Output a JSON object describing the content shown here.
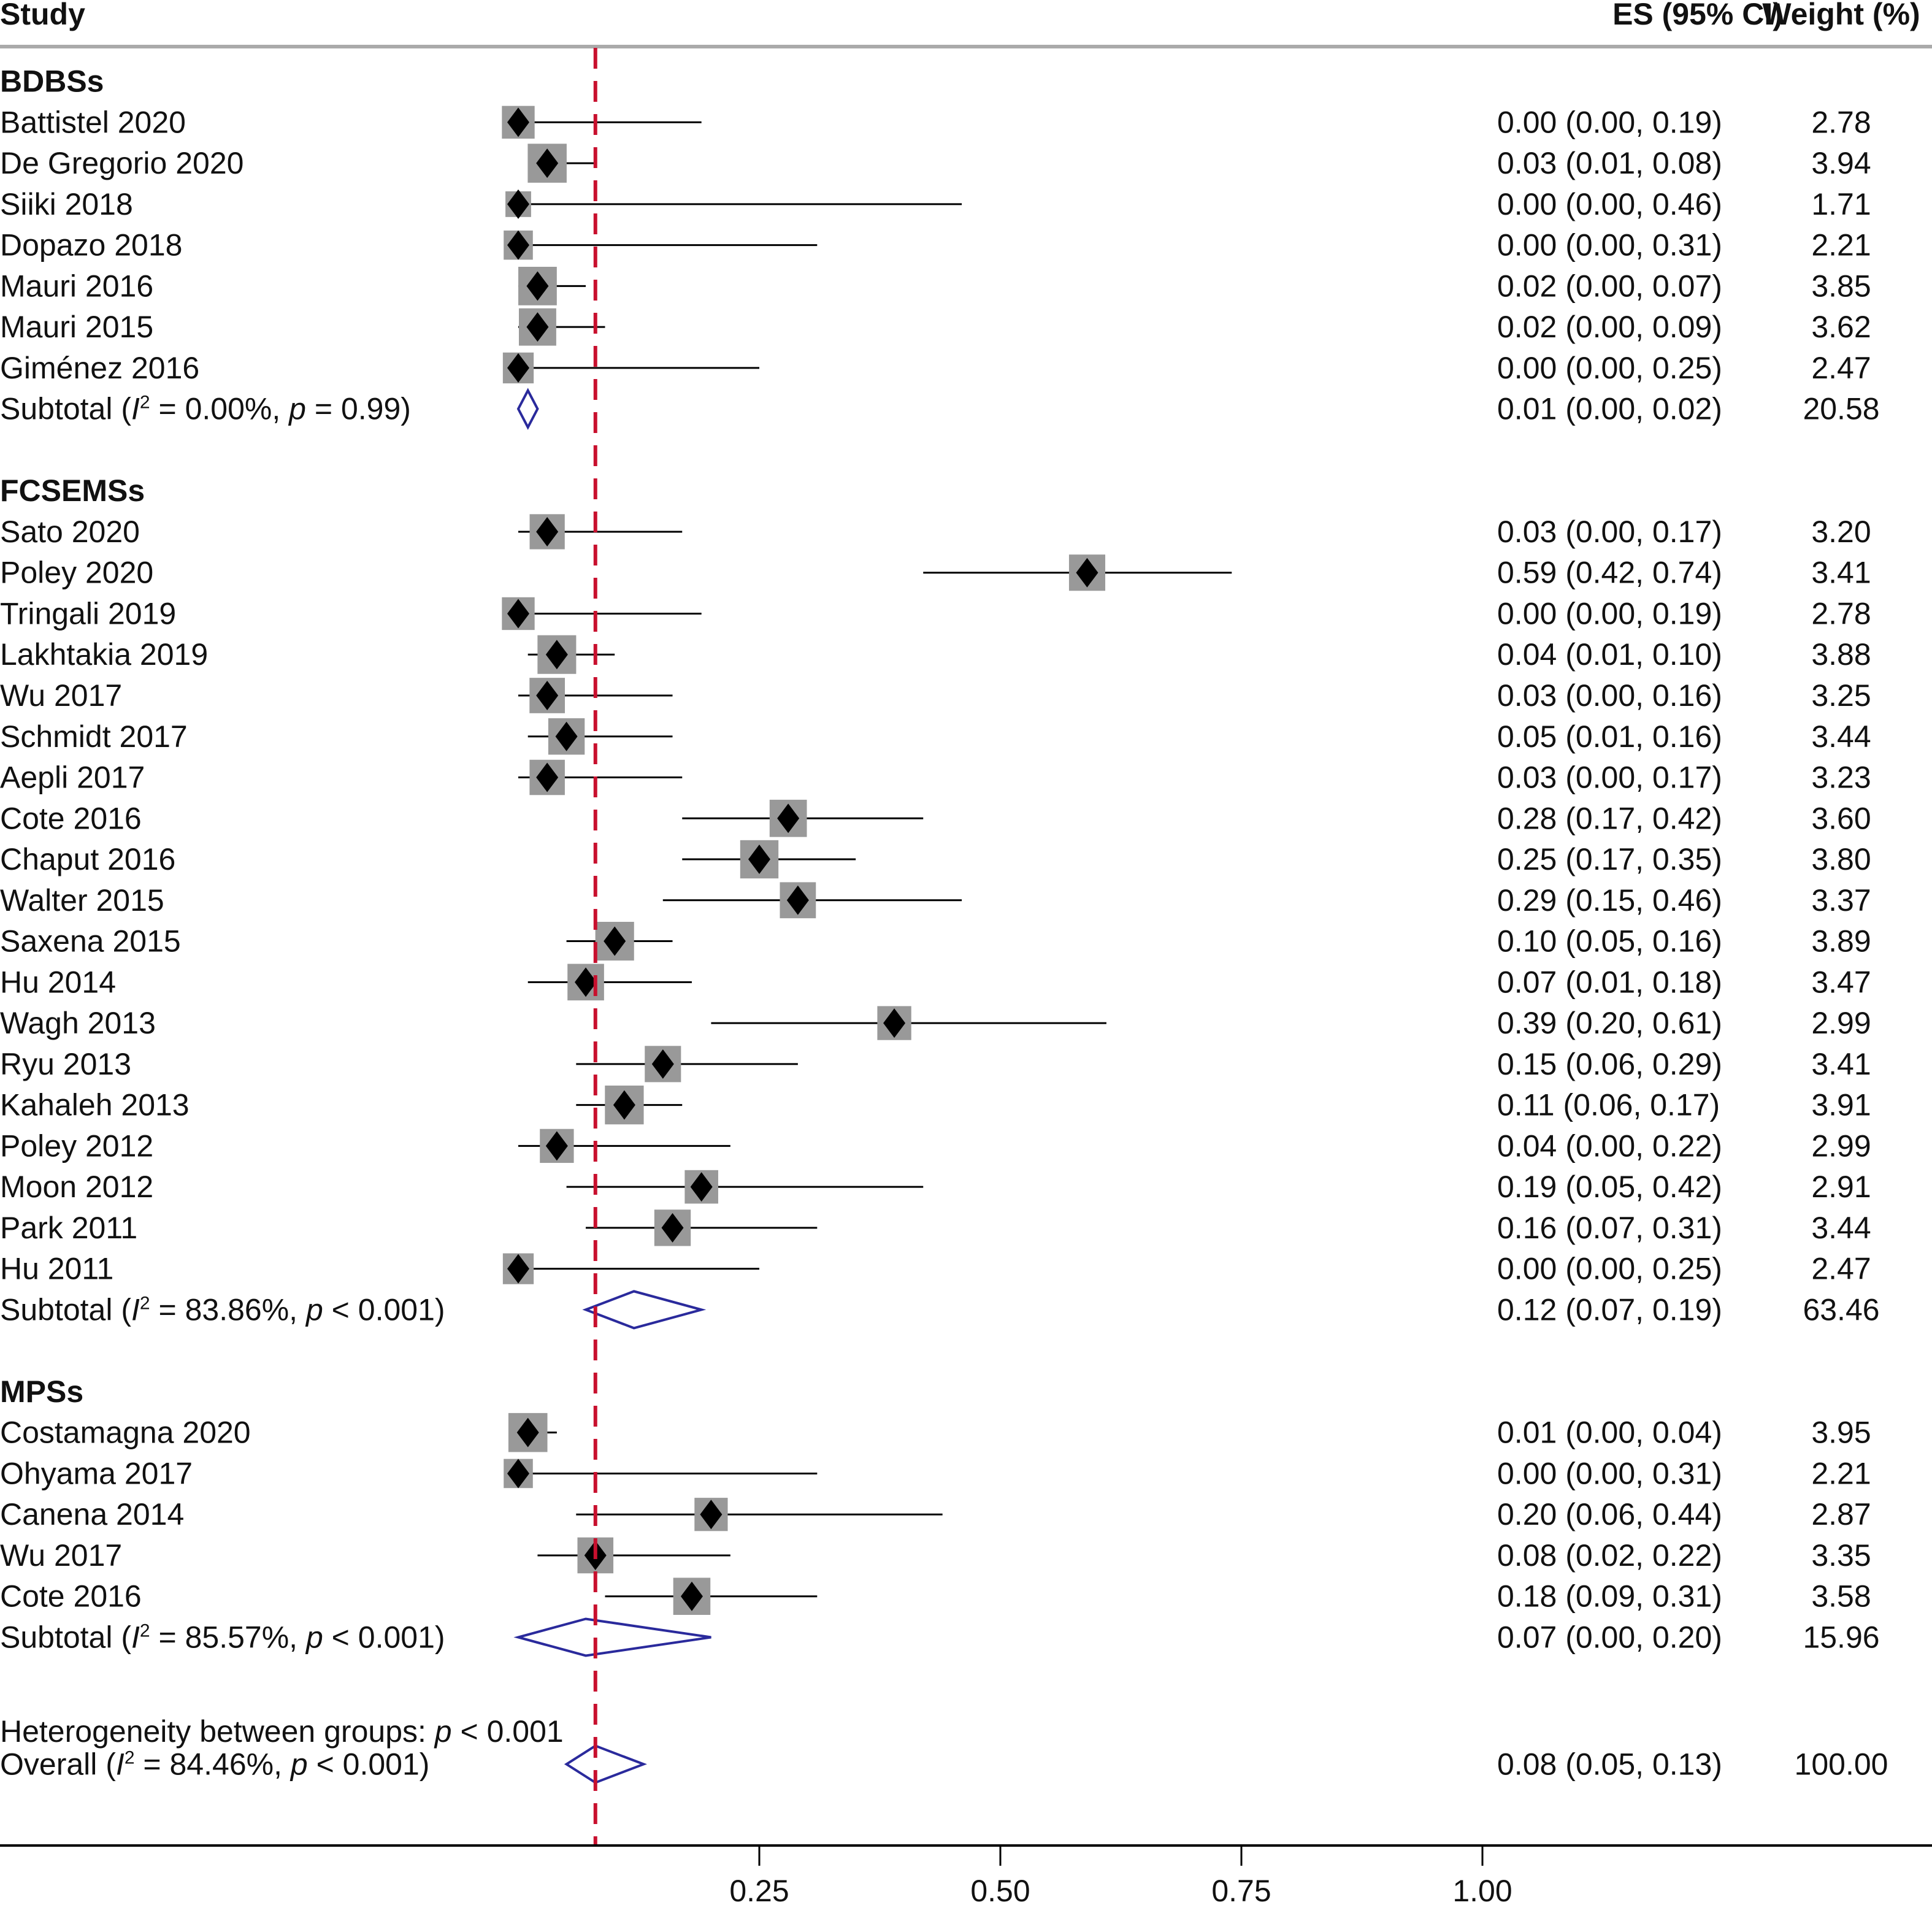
{
  "chart_data": {
    "type": "forest",
    "headers": {
      "study": "Study",
      "es": "ES (95% CI)",
      "weight": "Weight (%)"
    },
    "xaxis": {
      "ticks": [
        0.25,
        0.5,
        0.75,
        1.0
      ],
      "tick_labels": [
        "0.25",
        "0.50",
        "0.75",
        "1.00"
      ],
      "range": [
        0,
        1.0
      ]
    },
    "reference_line": {
      "value": 0.08,
      "style": "dashed",
      "color": "#c8102e"
    },
    "colors": {
      "study_box": "#999999",
      "point": "#000000",
      "pooled_diamond": "#2a2a9c",
      "reference": "#c8102e"
    },
    "subtotal_label": "Subtotal",
    "groups": [
      {
        "name": "BDBSs",
        "studies": [
          {
            "study": "Battistel 2020",
            "es": 0.0,
            "lo": 0.0,
            "hi": 0.19,
            "weight": 2.78,
            "es_text": "0.00 (0.00, 0.19)",
            "weight_text": "2.78"
          },
          {
            "study": "De Gregorio 2020",
            "es": 0.03,
            "lo": 0.01,
            "hi": 0.08,
            "weight": 3.94,
            "es_text": "0.03 (0.01, 0.08)",
            "weight_text": "3.94"
          },
          {
            "study": "Siiki 2018",
            "es": 0.0,
            "lo": 0.0,
            "hi": 0.46,
            "weight": 1.71,
            "es_text": "0.00 (0.00, 0.46)",
            "weight_text": "1.71"
          },
          {
            "study": "Dopazo 2018",
            "es": 0.0,
            "lo": 0.0,
            "hi": 0.31,
            "weight": 2.21,
            "es_text": "0.00 (0.00, 0.31)",
            "weight_text": "2.21"
          },
          {
            "study": "Mauri 2016",
            "es": 0.02,
            "lo": 0.0,
            "hi": 0.07,
            "weight": 3.85,
            "es_text": "0.02 (0.00, 0.07)",
            "weight_text": "3.85"
          },
          {
            "study": "Mauri 2015",
            "es": 0.02,
            "lo": 0.0,
            "hi": 0.09,
            "weight": 3.62,
            "es_text": "0.02 (0.00, 0.09)",
            "weight_text": "3.62"
          },
          {
            "study": "Giménez 2016",
            "es": 0.0,
            "lo": 0.0,
            "hi": 0.25,
            "weight": 2.47,
            "es_text": "0.00 (0.00, 0.25)",
            "weight_text": "2.47"
          }
        ],
        "subtotal": {
          "i2": "0.00%",
          "p": "= 0.99",
          "es": 0.01,
          "lo": 0.0,
          "hi": 0.02,
          "es_text": "0.01 (0.00, 0.02)",
          "weight_text": "20.58"
        }
      },
      {
        "name": "FCSEMSs",
        "studies": [
          {
            "study": "Sato 2020",
            "es": 0.03,
            "lo": 0.0,
            "hi": 0.17,
            "weight": 3.2,
            "es_text": "0.03 (0.00, 0.17)",
            "weight_text": "3.20"
          },
          {
            "study": "Poley 2020",
            "es": 0.59,
            "lo": 0.42,
            "hi": 0.74,
            "weight": 3.41,
            "es_text": "0.59 (0.42, 0.74)",
            "weight_text": "3.41"
          },
          {
            "study": "Tringali 2019",
            "es": 0.0,
            "lo": 0.0,
            "hi": 0.19,
            "weight": 2.78,
            "es_text": "0.00 (0.00, 0.19)",
            "weight_text": "2.78"
          },
          {
            "study": "Lakhtakia 2019",
            "es": 0.04,
            "lo": 0.01,
            "hi": 0.1,
            "weight": 3.88,
            "es_text": "0.04 (0.01, 0.10)",
            "weight_text": "3.88"
          },
          {
            "study": "Wu 2017",
            "es": 0.03,
            "lo": 0.0,
            "hi": 0.16,
            "weight": 3.25,
            "es_text": "0.03 (0.00, 0.16)",
            "weight_text": "3.25"
          },
          {
            "study": "Schmidt 2017",
            "es": 0.05,
            "lo": 0.01,
            "hi": 0.16,
            "weight": 3.44,
            "es_text": "0.05 (0.01, 0.16)",
            "weight_text": "3.44"
          },
          {
            "study": "Aepli 2017",
            "es": 0.03,
            "lo": 0.0,
            "hi": 0.17,
            "weight": 3.23,
            "es_text": "0.03 (0.00, 0.17)",
            "weight_text": "3.23"
          },
          {
            "study": "Cote 2016",
            "es": 0.28,
            "lo": 0.17,
            "hi": 0.42,
            "weight": 3.6,
            "es_text": "0.28 (0.17, 0.42)",
            "weight_text": "3.60"
          },
          {
            "study": "Chaput 2016",
            "es": 0.25,
            "lo": 0.17,
            "hi": 0.35,
            "weight": 3.8,
            "es_text": "0.25 (0.17, 0.35)",
            "weight_text": "3.80"
          },
          {
            "study": "Walter 2015",
            "es": 0.29,
            "lo": 0.15,
            "hi": 0.46,
            "weight": 3.37,
            "es_text": "0.29 (0.15, 0.46)",
            "weight_text": "3.37"
          },
          {
            "study": "Saxena 2015",
            "es": 0.1,
            "lo": 0.05,
            "hi": 0.16,
            "weight": 3.89,
            "es_text": "0.10 (0.05, 0.16)",
            "weight_text": "3.89"
          },
          {
            "study": "Hu 2014",
            "es": 0.07,
            "lo": 0.01,
            "hi": 0.18,
            "weight": 3.47,
            "es_text": "0.07 (0.01, 0.18)",
            "weight_text": "3.47"
          },
          {
            "study": "Wagh 2013",
            "es": 0.39,
            "lo": 0.2,
            "hi": 0.61,
            "weight": 2.99,
            "es_text": "0.39 (0.20, 0.61)",
            "weight_text": "2.99"
          },
          {
            "study": "Ryu 2013",
            "es": 0.15,
            "lo": 0.06,
            "hi": 0.29,
            "weight": 3.41,
            "es_text": "0.15 (0.06, 0.29)",
            "weight_text": "3.41"
          },
          {
            "study": "Kahaleh 2013",
            "es": 0.11,
            "lo": 0.06,
            "hi": 0.17,
            "weight": 3.91,
            "es_text": "0.11 (0.06, 0.17)",
            "weight_text": "3.91"
          },
          {
            "study": "Poley 2012",
            "es": 0.04,
            "lo": 0.0,
            "hi": 0.22,
            "weight": 2.99,
            "es_text": "0.04 (0.00, 0.22)",
            "weight_text": "2.99"
          },
          {
            "study": "Moon 2012",
            "es": 0.19,
            "lo": 0.05,
            "hi": 0.42,
            "weight": 2.91,
            "es_text": "0.19 (0.05, 0.42)",
            "weight_text": "2.91"
          },
          {
            "study": "Park 2011",
            "es": 0.16,
            "lo": 0.07,
            "hi": 0.31,
            "weight": 3.44,
            "es_text": "0.16 (0.07, 0.31)",
            "weight_text": "3.44"
          },
          {
            "study": "Hu 2011",
            "es": 0.0,
            "lo": 0.0,
            "hi": 0.25,
            "weight": 2.47,
            "es_text": "0.00 (0.00, 0.25)",
            "weight_text": "2.47"
          }
        ],
        "subtotal": {
          "i2": "83.86%",
          "p": "< 0.001",
          "es": 0.12,
          "lo": 0.07,
          "hi": 0.19,
          "es_text": "0.12 (0.07, 0.19)",
          "weight_text": "63.46"
        }
      },
      {
        "name": "MPSs",
        "studies": [
          {
            "study": "Costamagna 2020",
            "es": 0.01,
            "lo": 0.0,
            "hi": 0.04,
            "weight": 3.95,
            "es_text": "0.01 (0.00, 0.04)",
            "weight_text": "3.95"
          },
          {
            "study": "Ohyama 2017",
            "es": 0.0,
            "lo": 0.0,
            "hi": 0.31,
            "weight": 2.21,
            "es_text": "0.00 (0.00, 0.31)",
            "weight_text": "2.21"
          },
          {
            "study": "Canena 2014",
            "es": 0.2,
            "lo": 0.06,
            "hi": 0.44,
            "weight": 2.87,
            "es_text": "0.20 (0.06, 0.44)",
            "weight_text": "2.87"
          },
          {
            "study": "Wu 2017",
            "es": 0.08,
            "lo": 0.02,
            "hi": 0.22,
            "weight": 3.35,
            "es_text": "0.08 (0.02, 0.22)",
            "weight_text": "3.35"
          },
          {
            "study": "Cote 2016",
            "es": 0.18,
            "lo": 0.09,
            "hi": 0.31,
            "weight": 3.58,
            "es_text": "0.18 (0.09, 0.31)",
            "weight_text": "3.58"
          }
        ],
        "subtotal": {
          "i2": "85.57%",
          "p": "< 0.001",
          "es": 0.07,
          "lo": 0.0,
          "hi": 0.2,
          "es_text": "0.07 (0.00, 0.20)",
          "weight_text": "15.96"
        }
      }
    ],
    "heterogeneity": {
      "label": "Heterogeneity between groups:",
      "p": "< 0.001"
    },
    "overall": {
      "label": "Overall",
      "i2": "84.46%",
      "p": "< 0.001",
      "es": 0.08,
      "lo": 0.05,
      "hi": 0.13,
      "es_text": "0.08 (0.05, 0.13)",
      "weight_text": "100.00"
    }
  }
}
